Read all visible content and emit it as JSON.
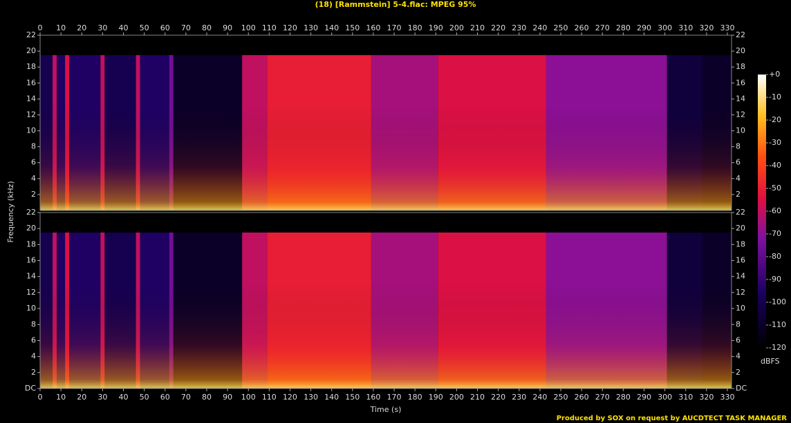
{
  "chart_data": {
    "type": "spectrogram",
    "title": "(18) [Rammstein] 5-4.flac: MPEG 95%",
    "xlabel": "Time (s)",
    "ylabel": "Frequency (kHz)",
    "footer": "Produced by SOX on request by AUCDTECT TASK MANAGER",
    "xlim": [
      0,
      332
    ],
    "xticks": [
      0,
      10,
      20,
      30,
      40,
      50,
      60,
      70,
      80,
      90,
      100,
      110,
      120,
      130,
      140,
      150,
      160,
      170,
      180,
      190,
      200,
      210,
      220,
      230,
      240,
      250,
      260,
      270,
      280,
      290,
      300,
      310,
      320,
      330
    ],
    "panels": [
      {
        "ylim": [
          0,
          22
        ],
        "yticks": [
          2,
          4,
          6,
          8,
          10,
          12,
          14,
          16,
          18,
          20,
          22
        ],
        "cutoff": 19.5,
        "bins": [
          0,
          6,
          8,
          12,
          14,
          29,
          31,
          46,
          48,
          62,
          64,
          97,
          109,
          159,
          191,
          243,
          301,
          318,
          332
        ],
        "values": [
          -100,
          -60,
          -95,
          -55,
          -95,
          -60,
          -100,
          -60,
          -95,
          -75,
          -110,
          -60,
          -50,
          -65,
          -55,
          -70,
          -105,
          -110
        ]
      },
      {
        "ylim": [
          0,
          22
        ],
        "yticks": [
          {
            "value": 0,
            "label": "DC"
          },
          2,
          4,
          6,
          8,
          10,
          12,
          14,
          16,
          18,
          20,
          22
        ],
        "cutoff": 19.5,
        "bins": [
          0,
          6,
          8,
          12,
          14,
          29,
          31,
          46,
          48,
          62,
          64,
          97,
          109,
          159,
          191,
          243,
          301,
          318,
          332
        ],
        "values": [
          -100,
          -60,
          -95,
          -55,
          -95,
          -60,
          -100,
          -60,
          -95,
          -75,
          -110,
          -60,
          -50,
          -65,
          -55,
          -70,
          -105,
          -110
        ]
      }
    ],
    "colorbar": {
      "label": "dBFS",
      "lim": [
        -120,
        0
      ],
      "ticks": [
        {
          "value": 0,
          "label": "+0"
        },
        -10,
        -20,
        -30,
        -40,
        -50,
        -60,
        -70,
        -80,
        -90,
        -100,
        -110,
        -120
      ]
    }
  }
}
